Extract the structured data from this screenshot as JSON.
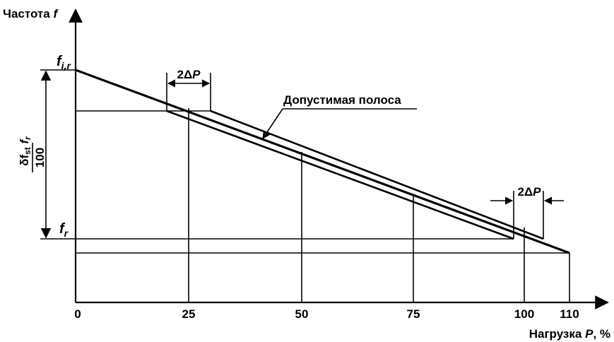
{
  "axes": {
    "y_label": "Частота",
    "y_symbol": "f",
    "x_label": "Нагрузка",
    "x_symbol": "P",
    "x_unit": ", %"
  },
  "x_ticks": [
    "0",
    "25",
    "50",
    "75",
    "100",
    "110"
  ],
  "labels": {
    "fir_main": "f",
    "fir_sub": "i,r",
    "fr_main": "f",
    "fr_sub": "r",
    "delta_top_prefix": "δf",
    "delta_top_sub": "st",
    "delta_top_f": "f",
    "delta_top_fsub": "r",
    "delta_bottom": "100",
    "dp_left_prefix": "2Δ",
    "dp_left_symbol": "P",
    "dp_right_prefix": "2Δ",
    "dp_right_symbol": "P",
    "band": "Допустимая полоса"
  }
}
